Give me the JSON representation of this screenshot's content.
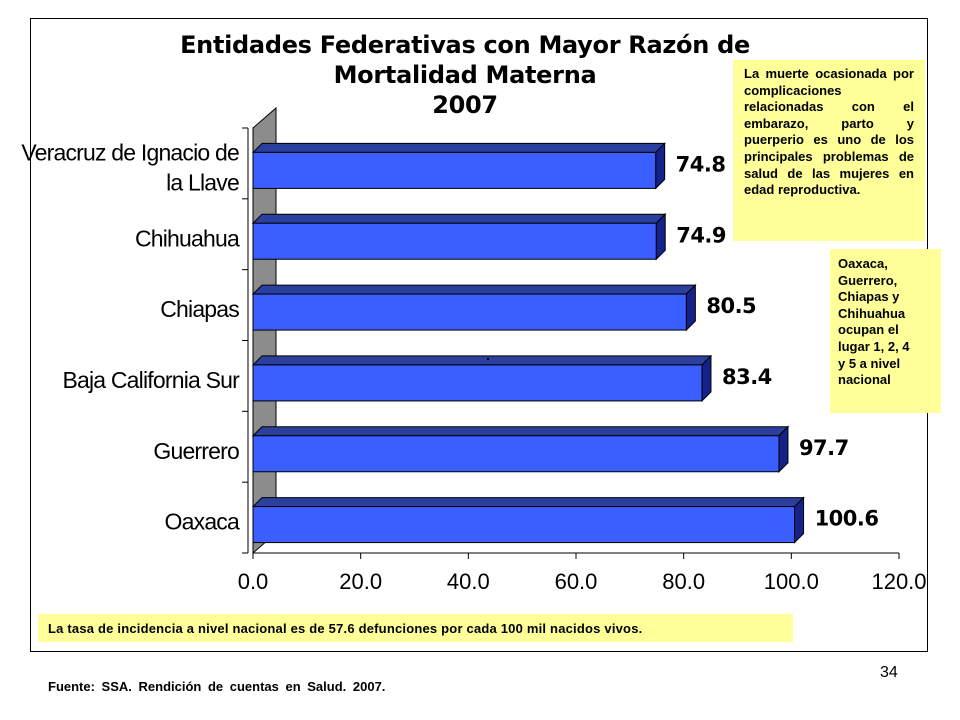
{
  "chart_data": {
    "type": "bar",
    "orientation": "horizontal",
    "title": "Entidades Federativas con Mayor Razón de Mortalidad Materna",
    "subtitle": "2007",
    "categories": [
      [
        "Veracruz de Ignacio de",
        "la Llave"
      ],
      [
        "Chihuahua"
      ],
      [
        "Chiapas"
      ],
      [
        "Baja California Sur"
      ],
      [
        "Guerrero"
      ],
      [
        "Oaxaca"
      ]
    ],
    "values": [
      74.8,
      74.9,
      80.5,
      83.4,
      97.7,
      100.6
    ],
    "value_labels": [
      "74.8",
      "74.9",
      "80.5",
      "83.4",
      "97.7",
      "100.6"
    ],
    "xlim": [
      0,
      120
    ],
    "xticks": [
      "0.0",
      "20.0",
      "40.0",
      "60.0",
      "80.0",
      "100.0",
      "120.0"
    ],
    "bar_color": "#3a5eff",
    "bar_top_color": "#2a3f9e",
    "bar_side_color": "#14228a",
    "wall_color": "#8c8c8c",
    "grid": false
  },
  "notes": {
    "main": "La muerte ocasionada por complicaciones relacionadas con el embarazo, parto y puerperio es uno de los principales problemas de salud de las mujeres en edad reproductiva.",
    "ranking_lines": [
      "Oaxaca,",
      "Guerrero,",
      "Chiapas y",
      "Chihuahua",
      "ocupan el",
      "lugar 1, 2, 4",
      "y 5 a nivel",
      "nacional"
    ],
    "note_color": "#ffff99"
  },
  "national_rate": "La tasa de incidencia a nivel nacional es de 57.6 defunciones por cada 100 mil nacidos vivos.",
  "source": "Fuente:   SSA. Rendición de cuentas en Salud. 2007.",
  "page_number": "34"
}
